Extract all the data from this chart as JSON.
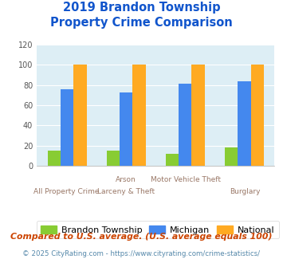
{
  "title_line1": "2019 Brandon Township",
  "title_line2": "Property Crime Comparison",
  "cat_labels_top": [
    "",
    "Arson",
    "Motor Vehicle Theft",
    ""
  ],
  "cat_labels_bot": [
    "All Property Crime",
    "Larceny & Theft",
    "",
    "Burglary"
  ],
  "brandon": [
    15,
    15,
    12,
    18
  ],
  "michigan": [
    76,
    73,
    81,
    84
  ],
  "national": [
    100,
    100,
    100,
    100
  ],
  "color_brandon": "#88cc33",
  "color_michigan": "#4488ee",
  "color_national": "#ffaa22",
  "ylim": [
    0,
    120
  ],
  "yticks": [
    0,
    20,
    40,
    60,
    80,
    100,
    120
  ],
  "bgcolor": "#ddeef5",
  "title_color": "#1155cc",
  "label_color": "#997766",
  "legend_labels": [
    "Brandon Township",
    "Michigan",
    "National"
  ],
  "footnote1": "Compared to U.S. average. (U.S. average equals 100)",
  "footnote2": "© 2025 CityRating.com - https://www.cityrating.com/crime-statistics/",
  "footnote1_color": "#cc4400",
  "footnote2_color": "#5588aa"
}
